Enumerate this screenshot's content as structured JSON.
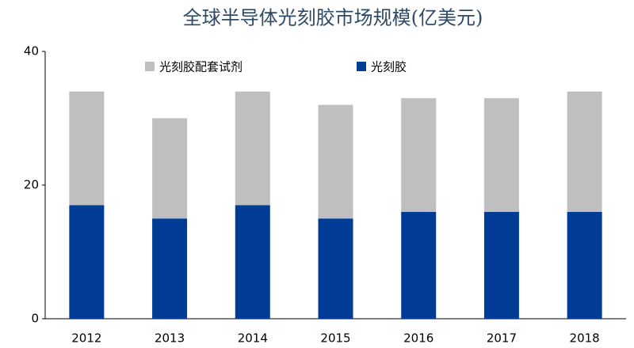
{
  "chart_data": {
    "type": "stacked-bar",
    "title": "全球半导体光刻胶市场规模(亿美元)",
    "categories": [
      "2012",
      "2013",
      "2014",
      "2015",
      "2016",
      "2017",
      "2018"
    ],
    "series": [
      {
        "name": "光刻胶配套试剂",
        "color": "#bfbfbf",
        "values": [
          17,
          15,
          17,
          17,
          17,
          17,
          18
        ]
      },
      {
        "name": "光刻胶",
        "color": "#003c96",
        "values": [
          17,
          15,
          17,
          15,
          16,
          16,
          16
        ]
      }
    ],
    "ylim": [
      0,
      40
    ],
    "yticks": [
      0,
      20,
      40
    ],
    "grid": false
  }
}
